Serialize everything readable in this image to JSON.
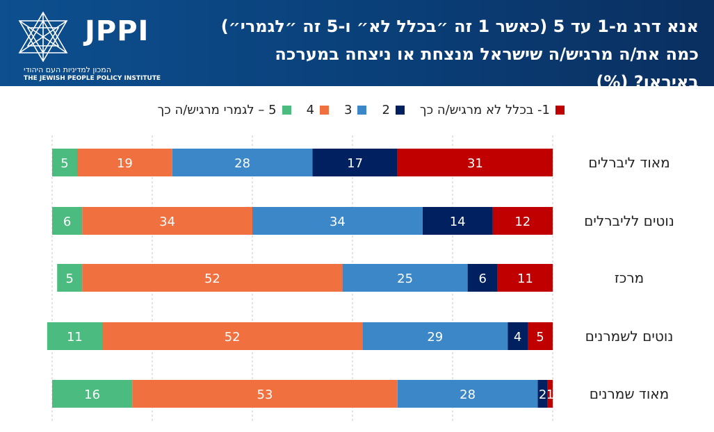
{
  "header": {
    "title": "אנא דרג מ-1 עד 5 (כאשר 1 זה ״בכלל לא״ ו-5 זה ״לגמרי״) כמה את/ה מרגיש/ה שישראל מנצחת או ניצחה במערכה באיראן? (%)",
    "logo": {
      "text": "JPPI",
      "subtitle_he": "המכון למדיניות העם היהודי",
      "subtitle_en": "THE JEWISH PEOPLE POLICY INSTITUTE"
    }
  },
  "chart_data": {
    "type": "bar",
    "orientation": "horizontal-stacked",
    "title": "אנא דרג מ-1 עד 5 (כאשר 1 זה ״בכלל לא״ ו-5 זה ״לגמרי״) כמה את/ה מרגיש/ה שישראל מנצחת או ניצחה במערכה באיראן? (%)",
    "categories": [
      "מאוד ליברלים",
      "נוטים לליברלים",
      "מרכז",
      "נוטים לשמרנים",
      "מאוד שמרנים"
    ],
    "series": [
      {
        "name": "1- בכלל לא מרגיש/ה כך",
        "color": "#c00000",
        "values": [
          31,
          12,
          11,
          5,
          1
        ]
      },
      {
        "name": "2",
        "color": "#002060",
        "values": [
          17,
          14,
          6,
          4,
          2
        ]
      },
      {
        "name": "3",
        "color": "#3c87c8",
        "values": [
          28,
          34,
          25,
          29,
          28
        ]
      },
      {
        "name": "4",
        "color": "#f07040",
        "values": [
          19,
          34,
          52,
          52,
          53
        ]
      },
      {
        "name": "5 – לגמרי מרגיש/ה כך",
        "color": "#4cbb7f",
        "values": [
          5,
          6,
          5,
          11,
          16
        ]
      }
    ],
    "legend": [
      "1- בכלל לא מרגיש/ה כך",
      "2",
      "3",
      "4",
      "5 – לגמרי מרגיש/ה כך"
    ],
    "legend_position": "top",
    "grid": "vertical",
    "stack_direction": "right-to-left"
  }
}
